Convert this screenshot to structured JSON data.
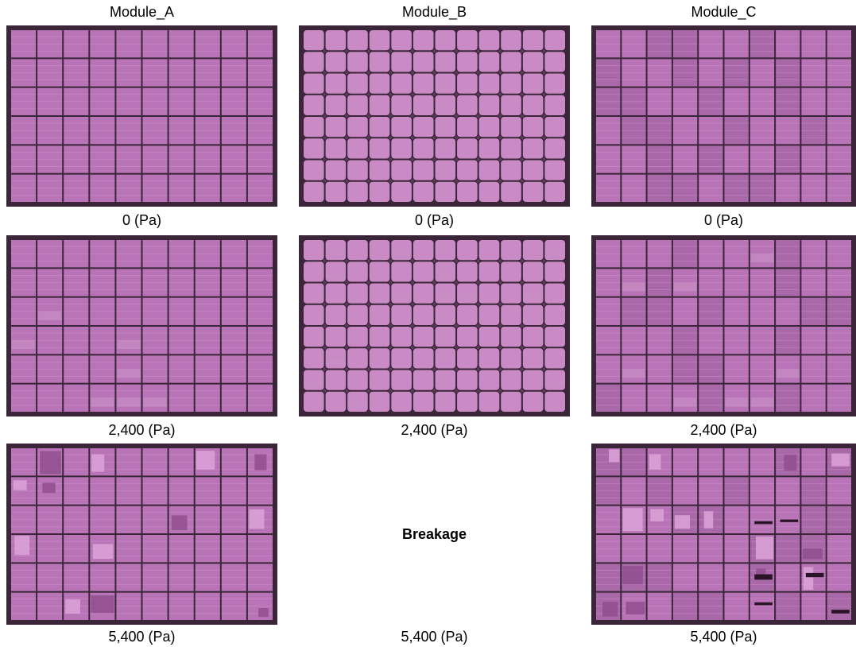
{
  "columns": [
    {
      "title": "Module_A",
      "captions": [
        "0  (Pa)",
        "2,400  (Pa)",
        "5,400  (Pa)"
      ]
    },
    {
      "title": "Module_B",
      "captions": [
        "0  (Pa)",
        "2,400  (Pa)",
        "5,400  (Pa)"
      ],
      "note": "Breakage"
    },
    {
      "title": "Module_C",
      "captions": [
        "0  (Pa)",
        "2,400  (Pa)",
        "5,400  (Pa)"
      ]
    }
  ],
  "colors": {
    "cell": "#b874b6",
    "cell_light": "#c98ac6",
    "cell_dark": "#8f4f8e",
    "frame": "#3a2638",
    "grid": "#5c3a5a",
    "background": "#ffffff"
  }
}
